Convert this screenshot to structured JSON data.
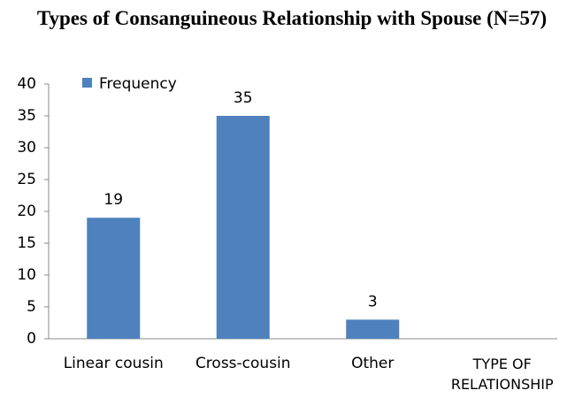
{
  "chart_data": {
    "type": "bar",
    "title": "Types of  Consanguineous Relationship with Spouse (N=57)",
    "x_label": "TYPE OF RELATIONSHIP",
    "categories": [
      "Linear cousin",
      "Cross-cousin",
      "Other"
    ],
    "series": [
      {
        "name": "Frequency",
        "color": "#4f81bd",
        "values": [
          19,
          35,
          3
        ]
      }
    ],
    "ylim": [
      0,
      40
    ],
    "yticks": [
      0,
      5,
      10,
      15,
      20,
      25,
      30,
      35,
      40
    ],
    "grid": false,
    "legend": "top-left"
  }
}
